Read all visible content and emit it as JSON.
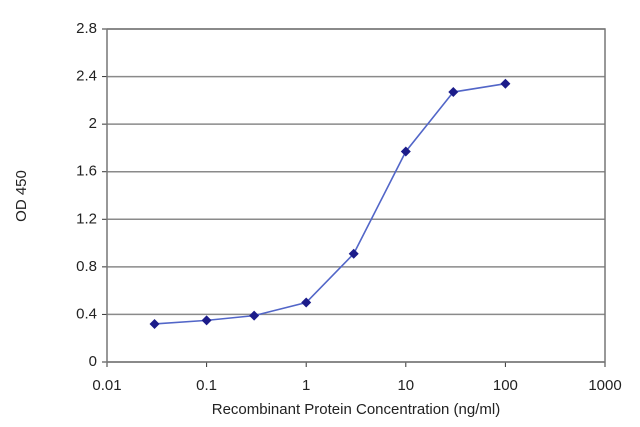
{
  "chart_data": {
    "type": "line",
    "xlabel": "Recombinant Protein Concentration (ng/ml)",
    "ylabel": "OD 450",
    "x": [
      0.03,
      0.1,
      0.3,
      1,
      3,
      10,
      30,
      100
    ],
    "series": [
      {
        "color": "#1c1c8a",
        "line_color": "#5266c8",
        "values": [
          0.32,
          0.35,
          0.39,
          0.5,
          0.91,
          1.77,
          2.27,
          2.34
        ]
      }
    ],
    "xscale": "log",
    "xlim": [
      0.01,
      1000
    ],
    "xticks": [
      0.01,
      0.1,
      1,
      10,
      100,
      1000
    ],
    "ylim": [
      0,
      2.8
    ],
    "yticks": [
      0,
      0.4,
      0.8,
      1.2,
      1.6,
      2,
      2.4,
      2.8
    ],
    "grid": true
  }
}
